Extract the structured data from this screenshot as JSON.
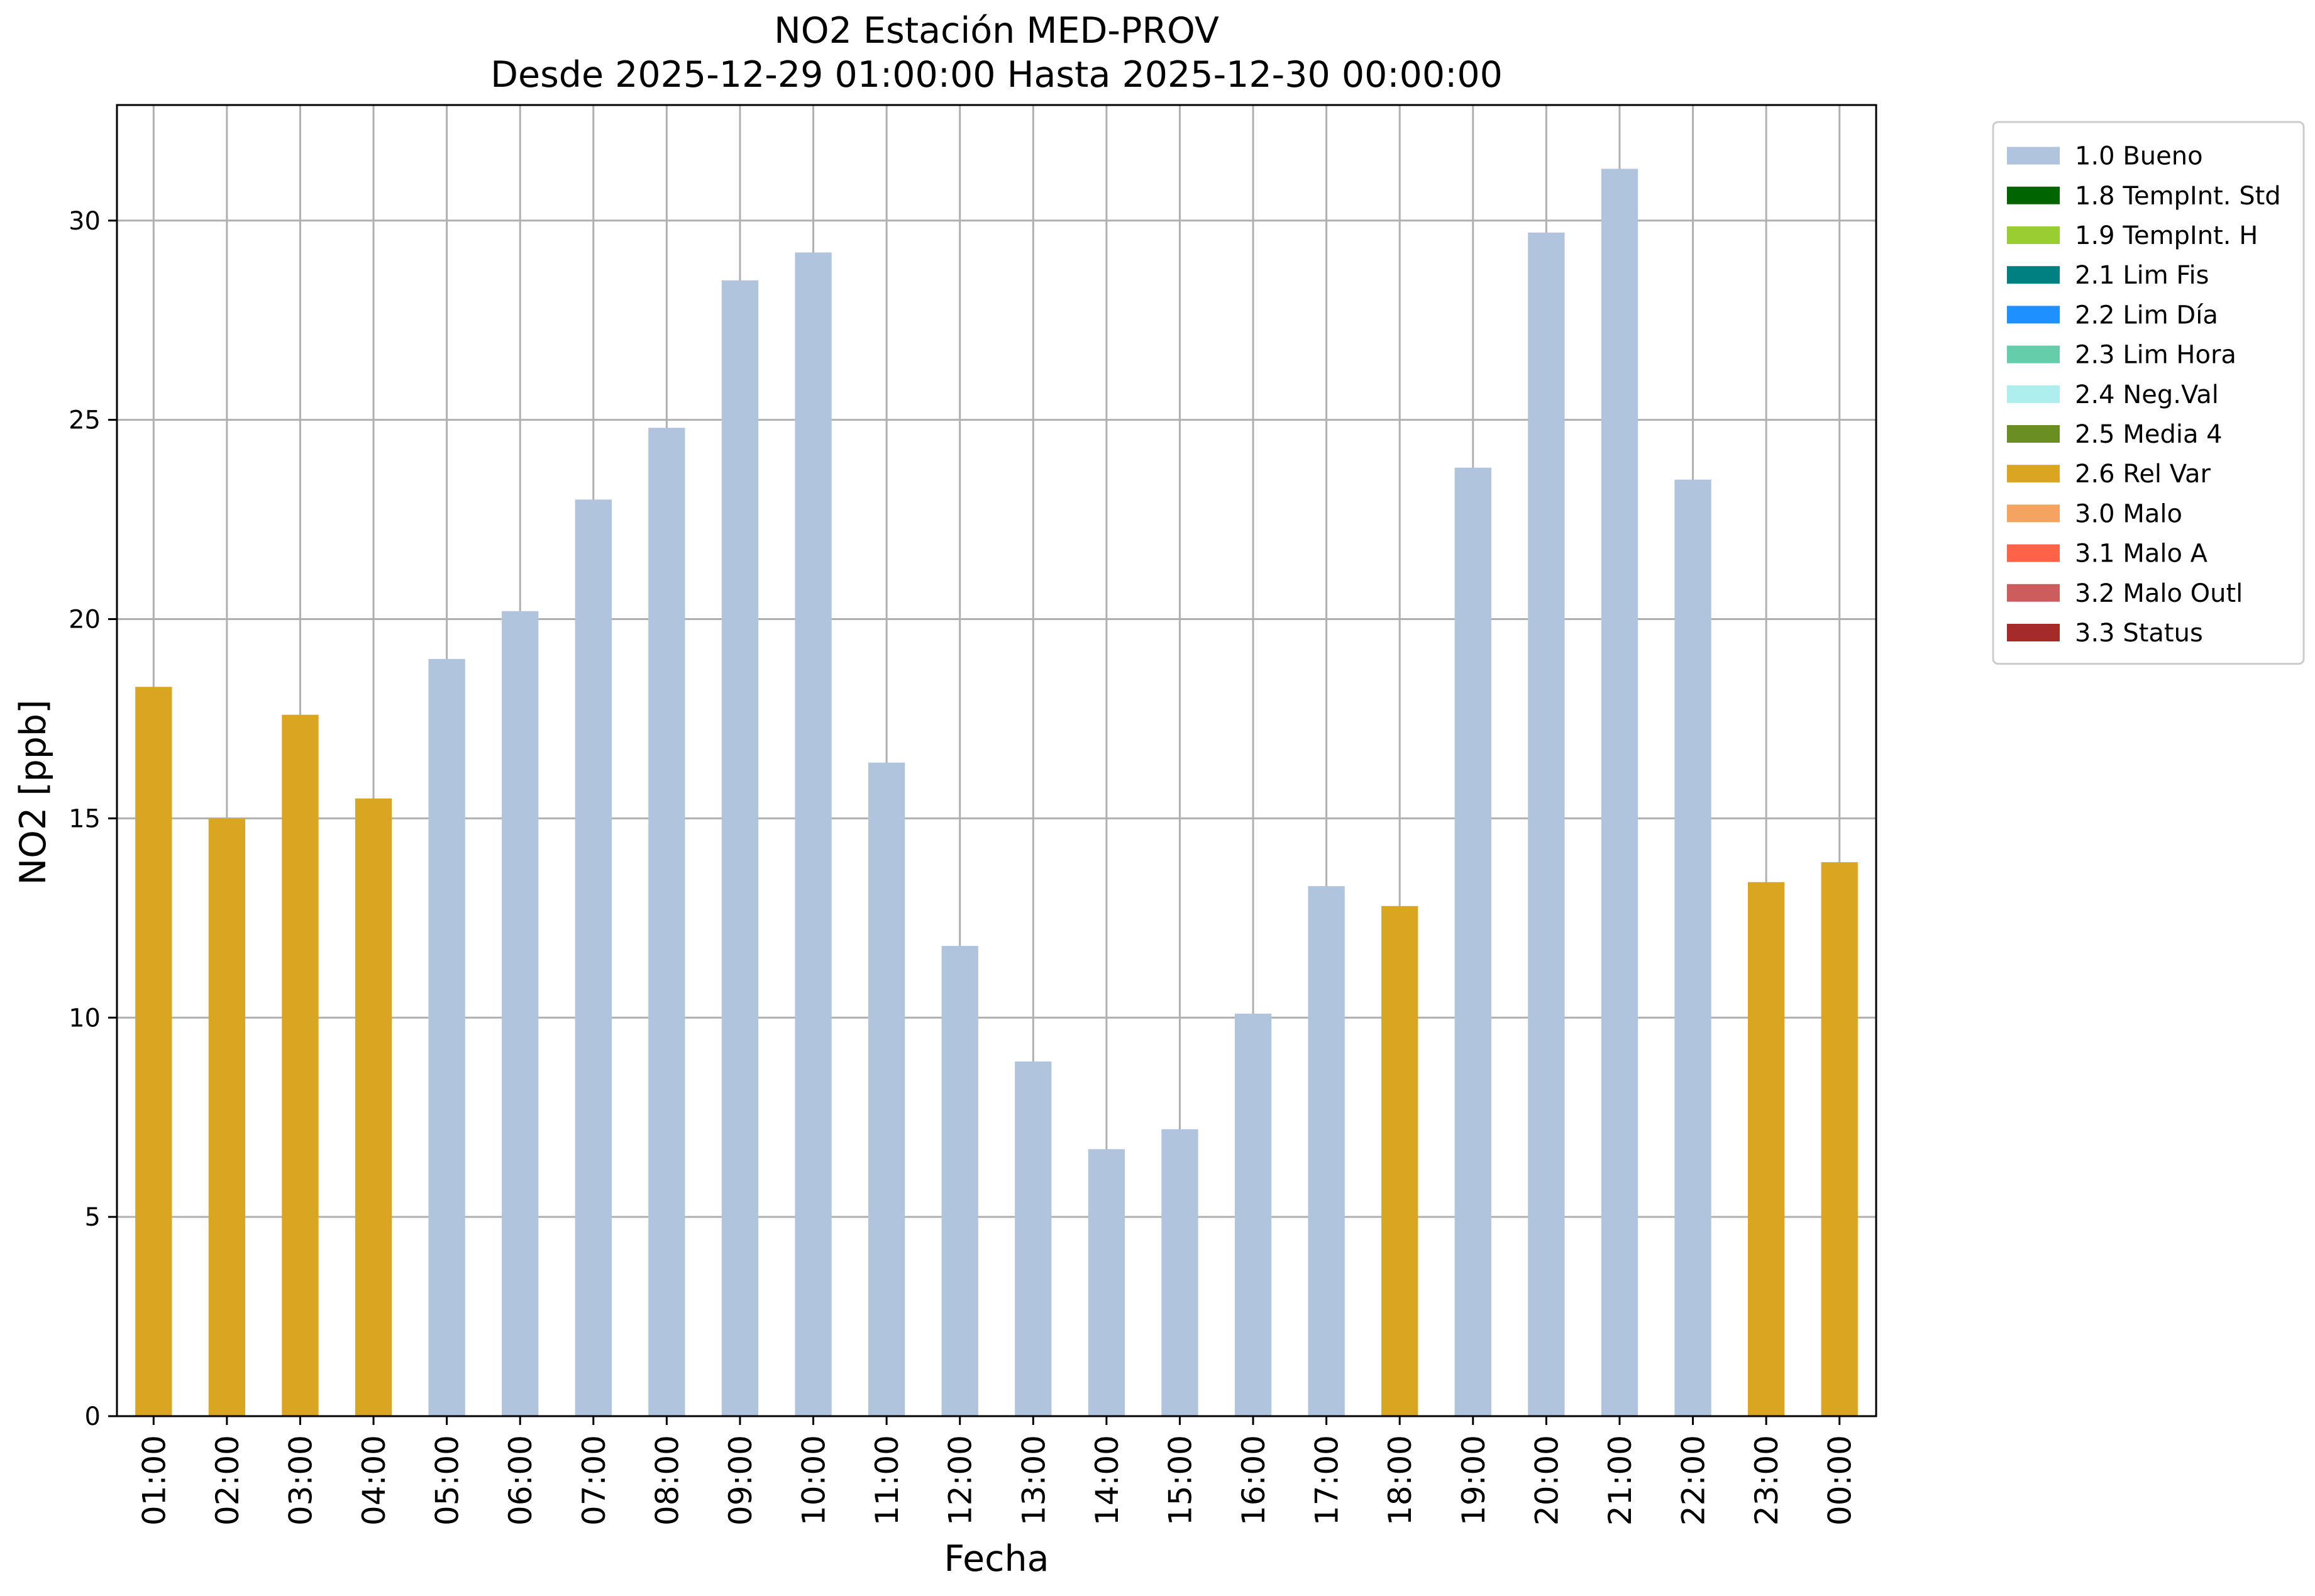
{
  "chart_data": {
    "type": "bar",
    "title": "NO2 Estación MED-PROV",
    "subtitle": "Desde 2025-12-29 01:00:00 Hasta 2025-12-30 00:00:00",
    "xlabel": "Fecha",
    "ylabel": "NO2 [ppb]",
    "ylim": [
      0,
      32.9
    ],
    "yticks": [
      "0",
      "5",
      "10",
      "15",
      "20",
      "25",
      "30"
    ],
    "grid": true,
    "legend_position": "outside-top-right",
    "categories": [
      "01:00",
      "02:00",
      "03:00",
      "04:00",
      "05:00",
      "06:00",
      "07:00",
      "08:00",
      "09:00",
      "10:00",
      "11:00",
      "12:00",
      "13:00",
      "14:00",
      "15:00",
      "16:00",
      "17:00",
      "18:00",
      "19:00",
      "20:00",
      "21:00",
      "22:00",
      "23:00",
      "00:00"
    ],
    "values": [
      18.3,
      15.0,
      17.6,
      15.5,
      19.0,
      20.2,
      23.0,
      24.8,
      28.5,
      29.2,
      16.4,
      11.8,
      8.9,
      6.7,
      7.2,
      10.1,
      13.3,
      12.8,
      23.8,
      29.7,
      31.3,
      23.5,
      13.4,
      13.9
    ],
    "flags": [
      "2.6 Rel Var",
      "2.6 Rel Var",
      "2.6 Rel Var",
      "2.6 Rel Var",
      "1.0 Bueno",
      "1.0 Bueno",
      "1.0 Bueno",
      "1.0 Bueno",
      "1.0 Bueno",
      "1.0 Bueno",
      "1.0 Bueno",
      "1.0 Bueno",
      "1.0 Bueno",
      "1.0 Bueno",
      "1.0 Bueno",
      "1.0 Bueno",
      "1.0 Bueno",
      "2.6 Rel Var",
      "1.0 Bueno",
      "1.0 Bueno",
      "1.0 Bueno",
      "1.0 Bueno",
      "2.6 Rel Var",
      "2.6 Rel Var"
    ],
    "legend": [
      {
        "label": "1.0 Bueno",
        "color": "#b0c4de"
      },
      {
        "label": "1.8 TempInt. Std",
        "color": "#006400"
      },
      {
        "label": "1.9 TempInt. H",
        "color": "#9acd32"
      },
      {
        "label": "2.1 Lim Fis",
        "color": "#008080"
      },
      {
        "label": "2.2 Lim Día",
        "color": "#1e90ff"
      },
      {
        "label": "2.3 Lim Hora",
        "color": "#66cdaa"
      },
      {
        "label": "2.4 Neg.Val",
        "color": "#afeeee"
      },
      {
        "label": "2.5 Media 4",
        "color": "#6b8e23"
      },
      {
        "label": "2.6 Rel Var",
        "color": "#daa520"
      },
      {
        "label": "3.0 Malo",
        "color": "#f4a460"
      },
      {
        "label": "3.1 Malo A",
        "color": "#ff6347"
      },
      {
        "label": "3.2 Malo Outl",
        "color": "#cd5c5c"
      },
      {
        "label": "3.3 Status",
        "color": "#a52a2a"
      }
    ]
  }
}
